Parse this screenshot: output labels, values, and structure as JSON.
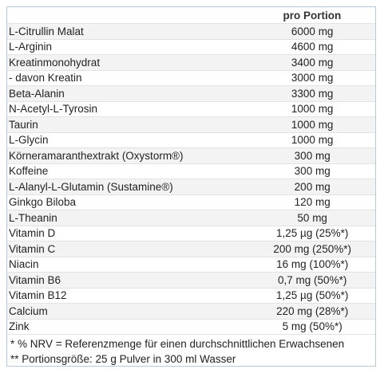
{
  "table": {
    "header": {
      "name": "",
      "portion": "pro Portion"
    },
    "rows": [
      {
        "name": "L-Citrullin Malat",
        "value": "6000 mg"
      },
      {
        "name": "L-Arginin",
        "value": "4600 mg"
      },
      {
        "name": "Kreatinmonohydrat",
        "value": "3400 mg"
      },
      {
        "name": " - davon Kreatin",
        "value": "3000 mg"
      },
      {
        "name": "Beta-Alanin",
        "value": "3300 mg"
      },
      {
        "name": "N-Acetyl-L-Tyrosin",
        "value": "1000 mg"
      },
      {
        "name": "Taurin",
        "value": "1000 mg"
      },
      {
        "name": "L-Glycin",
        "value": "1000 mg"
      },
      {
        "name": "Körneramaranthextrakt (Oxystorm®)",
        "value": "300 mg"
      },
      {
        "name": "Koffeine",
        "value": "300 mg"
      },
      {
        "name": "L-Alanyl-L-Glutamin (Sustamine®)",
        "value": "200 mg"
      },
      {
        "name": "Ginkgo Biloba",
        "value": "120 mg"
      },
      {
        "name": "L-Theanin",
        "value": "50 mg"
      },
      {
        "name": "Vitamin D",
        "value": "1,25 µg (25%*)"
      },
      {
        "name": "Vitamin C",
        "value": "200 mg (250%*)"
      },
      {
        "name": "Niacin",
        "value": "16 mg (100%*)"
      },
      {
        "name": "Vitamin B6",
        "value": "0,7 mg (50%*)"
      },
      {
        "name": " Vitamin B12",
        "value": "1,25 µg (50%*)"
      },
      {
        "name": "Calcium",
        "value": "220 mg (28%*)"
      },
      {
        "name": "Zink",
        "value": "5 mg (50%*)"
      }
    ],
    "footnotes": [
      " * % NRV = Referenzmenge für einen durchschnittlichen Erwachsenen",
      "** Portionsgröße: 25 g Pulver in 300 ml Wasser"
    ]
  }
}
